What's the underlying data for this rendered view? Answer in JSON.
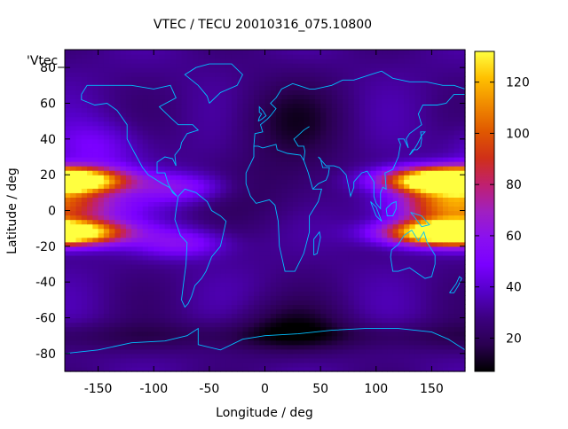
{
  "chart_data": {
    "type": "heatmap",
    "title": "VTEC / TECU 20010316_075.10800",
    "xlabel": "Longitude / deg",
    "ylabel": "Latitude / deg",
    "key_label": "'Vtec_",
    "xlim": [
      -180,
      180
    ],
    "ylim": [
      -90,
      90
    ],
    "x_ticks": [
      -150,
      -100,
      -50,
      0,
      50,
      100,
      150
    ],
    "y_ticks": [
      -80,
      -60,
      -40,
      -20,
      0,
      20,
      40,
      60,
      80
    ],
    "colorbar": {
      "min": 7,
      "max": 132,
      "ticks": [
        20,
        40,
        60,
        80,
        100,
        120
      ]
    },
    "palette": [
      "#000000",
      "#2a0050",
      "#3c0080",
      "#5500c8",
      "#7a00ff",
      "#8a10f0",
      "#a020c0",
      "#c02070",
      "#d03018",
      "#e05800",
      "#f08a00",
      "#ffc000",
      "#ffff40"
    ],
    "coastline_color": "#00c0ff",
    "grid": false,
    "z_unit": "TECU"
  }
}
